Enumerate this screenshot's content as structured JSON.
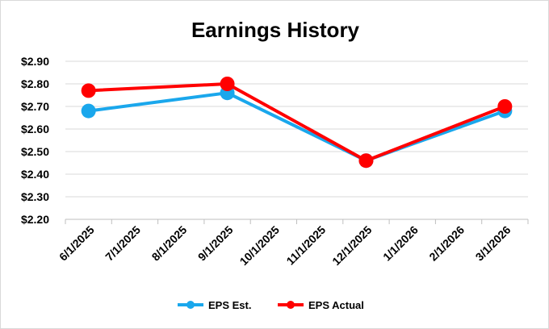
{
  "chart_data": {
    "type": "line",
    "title": "Earnings History",
    "xlabel": "",
    "ylabel": "",
    "categories": [
      "6/1/2025",
      "7/1/2025",
      "8/1/2025",
      "9/1/2025",
      "10/1/2025",
      "11/1/2025",
      "12/1/2025",
      "1/1/2026",
      "2/1/2026",
      "3/1/2026"
    ],
    "ylim": [
      2.2,
      2.9
    ],
    "y_ticks": [
      2.2,
      2.3,
      2.4,
      2.5,
      2.6,
      2.7,
      2.8,
      2.9
    ],
    "y_tick_labels": [
      "$2.20",
      "$2.30",
      "$2.40",
      "$2.50",
      "$2.60",
      "$2.70",
      "$2.80",
      "$2.90"
    ],
    "grid": true,
    "legend_position": "bottom",
    "series": [
      {
        "name": "EPS Est.",
        "color": "#1aa7ec",
        "points": [
          {
            "x": "6/1/2025",
            "y": 2.68
          },
          {
            "x": "9/1/2025",
            "y": 2.76
          },
          {
            "x": "12/1/2025",
            "y": 2.46
          },
          {
            "x": "3/1/2026",
            "y": 2.68
          }
        ]
      },
      {
        "name": "EPS Actual",
        "color": "#ff0000",
        "points": [
          {
            "x": "6/1/2025",
            "y": 2.77
          },
          {
            "x": "9/1/2025",
            "y": 2.8
          },
          {
            "x": "12/1/2025",
            "y": 2.46
          },
          {
            "x": "3/1/2026",
            "y": 2.7
          }
        ]
      }
    ]
  }
}
